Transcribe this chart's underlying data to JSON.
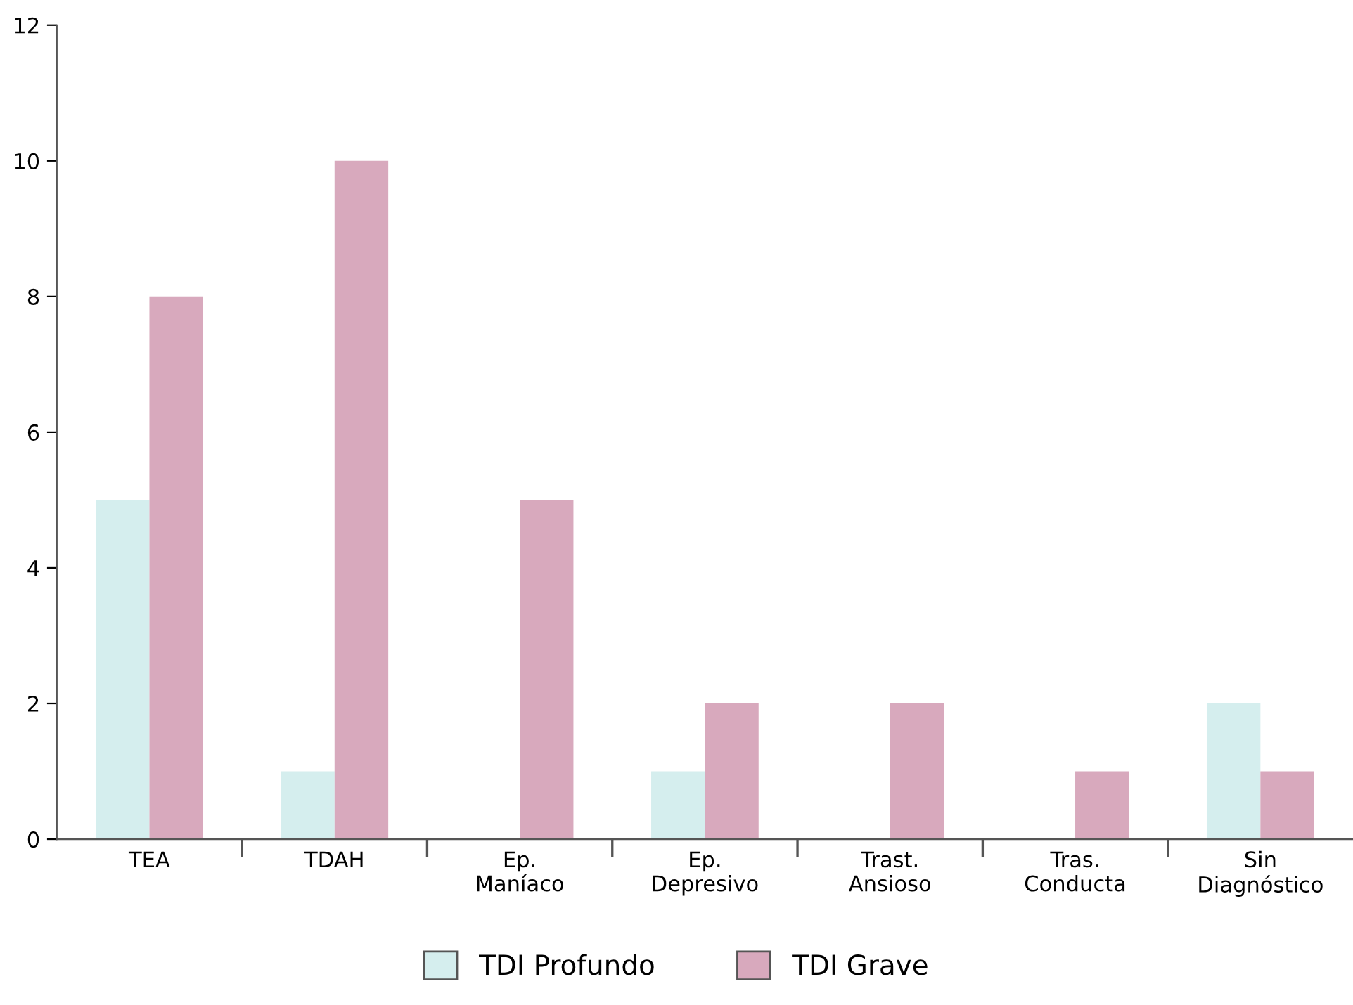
{
  "chart_data": {
    "type": "bar",
    "categories": [
      "TEA",
      "TDAH",
      "Ep.\nManíaco",
      "Ep.\nDepresivo",
      "Trast.\nAnsioso",
      "Tras.\nConducta",
      "Sin\nDiagnóstico"
    ],
    "series": [
      {
        "name": "TDI Profundo",
        "color": "#d5eeee",
        "values": [
          5,
          1,
          0,
          1,
          0,
          0,
          2
        ]
      },
      {
        "name": "TDI Grave",
        "color": "#d8a9bd",
        "values": [
          8,
          10,
          5,
          2,
          2,
          1,
          1
        ]
      }
    ],
    "ylim": [
      0,
      12
    ],
    "yticks": [
      0,
      2,
      4,
      6,
      8,
      10,
      12
    ],
    "grid": false,
    "legend": "bottom"
  }
}
